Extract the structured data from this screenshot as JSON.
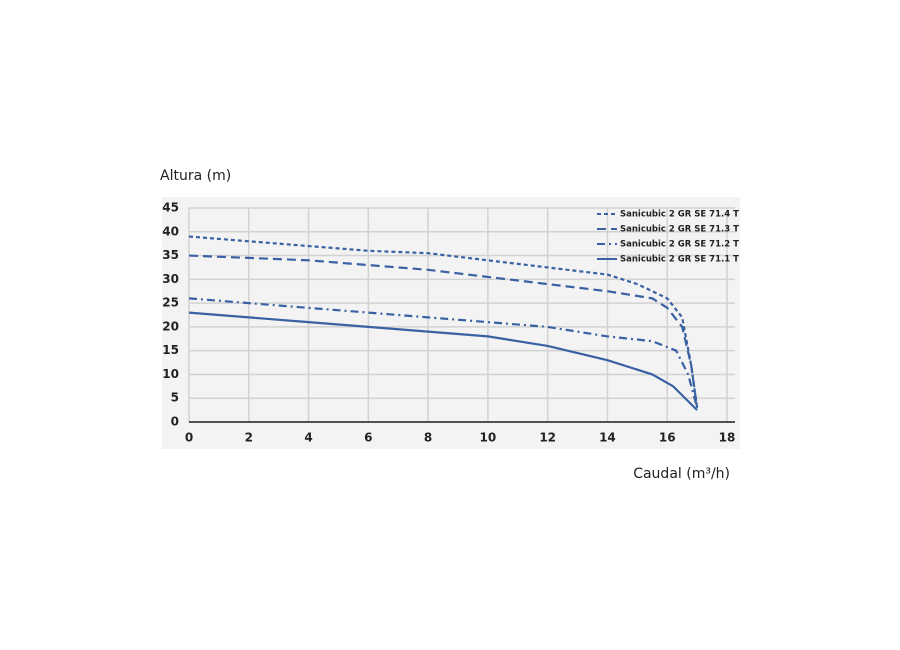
{
  "chart_data": {
    "type": "line",
    "y_label": "Altura (m)",
    "x_label": "Caudal (m³/h)",
    "xlim": [
      0,
      18
    ],
    "xticks": [
      0,
      2,
      4,
      6,
      8,
      10,
      12,
      14,
      16,
      18
    ],
    "ylim": [
      0,
      45
    ],
    "yticks": [
      0,
      5,
      10,
      15,
      20,
      25,
      30,
      35,
      40,
      45
    ],
    "grid": true,
    "legend": "top-right",
    "series": [
      {
        "name": "Sanicubic 2 GR SE 71.4 T",
        "color": "#3a62a3",
        "dash": "short-dash",
        "x": [
          0,
          4,
          6,
          8,
          10,
          12,
          14,
          15,
          16,
          16.5,
          16.8,
          17
        ],
        "values": [
          39,
          37,
          36,
          35.5,
          34,
          32.5,
          31,
          29,
          26,
          22,
          12,
          3
        ]
      },
      {
        "name": "Sanicubic 2 GR SE 71.3 T",
        "color": "#3a62a3",
        "dash": "long-dash",
        "x": [
          0,
          4,
          6,
          8,
          10,
          12,
          14,
          15.5,
          16,
          16.5,
          16.8,
          17
        ],
        "values": [
          35,
          34,
          33,
          32,
          30.5,
          29,
          27.5,
          26,
          24,
          20,
          12,
          3
        ]
      },
      {
        "name": "Sanicubic 2 GR SE 71.2 T",
        "color": "#3a62a3",
        "dash": "dash-dot",
        "x": [
          0,
          2,
          4,
          6,
          8,
          10,
          12,
          14,
          15.5,
          16.3,
          16.7,
          17
        ],
        "values": [
          26,
          25,
          24,
          23,
          22,
          21,
          20,
          18,
          17,
          15,
          10,
          3
        ]
      },
      {
        "name": "Sanicubic 2 GR SE 71.1 T",
        "color": "#3a62a3",
        "dash": "solid",
        "x": [
          0,
          4,
          6,
          8,
          10,
          12,
          14,
          15.5,
          16.2,
          16.6,
          17
        ],
        "values": [
          23,
          21,
          20,
          19,
          18,
          16,
          13,
          10,
          7.5,
          5,
          2.5
        ]
      }
    ]
  }
}
